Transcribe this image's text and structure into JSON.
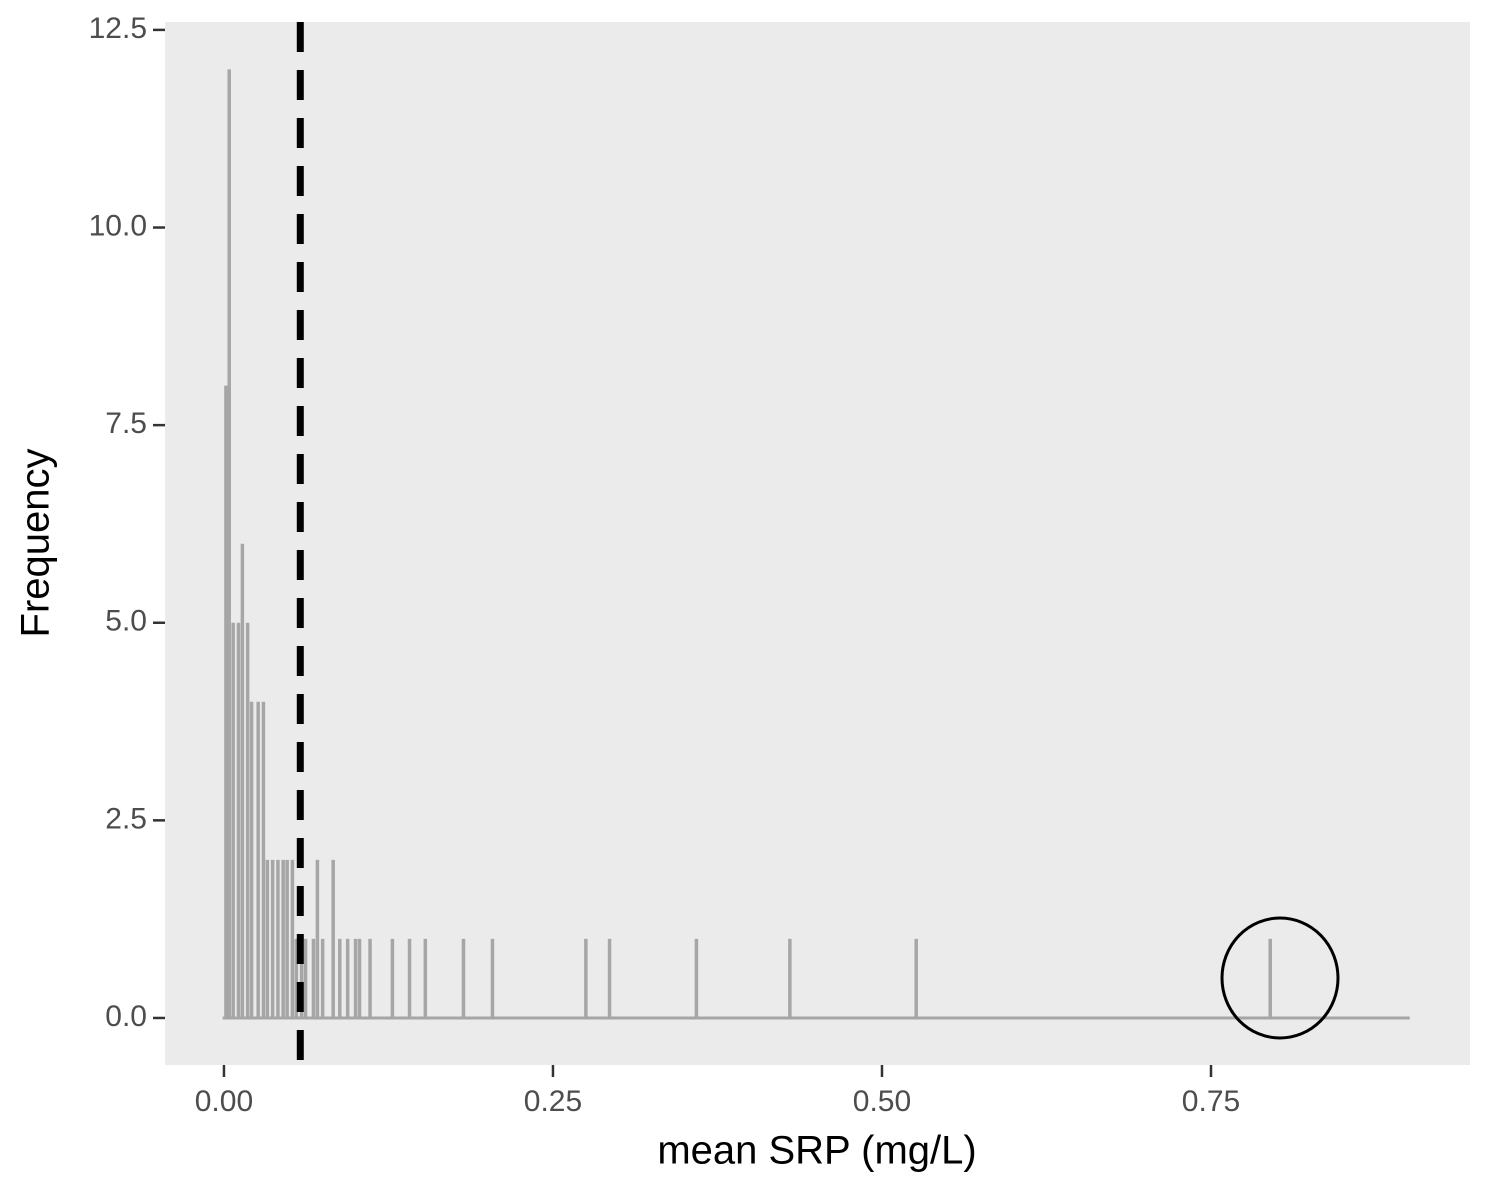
{
  "chart_data": {
    "type": "freqpoly",
    "x_label": "mean SRP (mg/L)",
    "y_label": "Frequency",
    "x": [
      -0.001,
      0.0015,
      0.004,
      0.007,
      0.011,
      0.014,
      0.018,
      0.021,
      0.026,
      0.03,
      0.033,
      0.037,
      0.041,
      0.045,
      0.048,
      0.052,
      0.055,
      0.059,
      0.062,
      0.068,
      0.071,
      0.075,
      0.083,
      0.088,
      0.094,
      0.1,
      0.103,
      0.111,
      0.128,
      0.141,
      0.153,
      0.182,
      0.204,
      0.275,
      0.293,
      0.359,
      0.43,
      0.526,
      0.795,
      0.901
    ],
    "values": [
      0,
      8,
      12,
      5,
      5,
      6,
      5,
      4,
      4,
      4,
      2,
      2,
      2,
      2,
      2,
      2,
      1,
      1,
      1,
      1,
      2,
      1,
      2,
      1,
      1,
      1,
      1,
      1,
      1,
      1,
      1,
      1,
      1,
      1,
      1,
      1,
      1,
      1,
      1,
      0
    ],
    "color": "#a6a6a6",
    "vline": 0.058,
    "vline_color": "#000000",
    "xlim": [
      -0.0448,
      0.9468
    ],
    "ylim": [
      -0.595,
      12.6
    ],
    "xticks": [
      {
        "value": 0,
        "label": "0.00"
      },
      0.25,
      {
        "value": 0.5,
        "label": "0.50"
      },
      0.75
    ],
    "yticks": [
      {
        "value": 0,
        "label": "0.0"
      },
      2.5,
      {
        "value": 5,
        "label": "5.0"
      },
      7.5,
      {
        "value": 10,
        "label": "10.0"
      },
      12.5
    ],
    "grid": false
  }
}
